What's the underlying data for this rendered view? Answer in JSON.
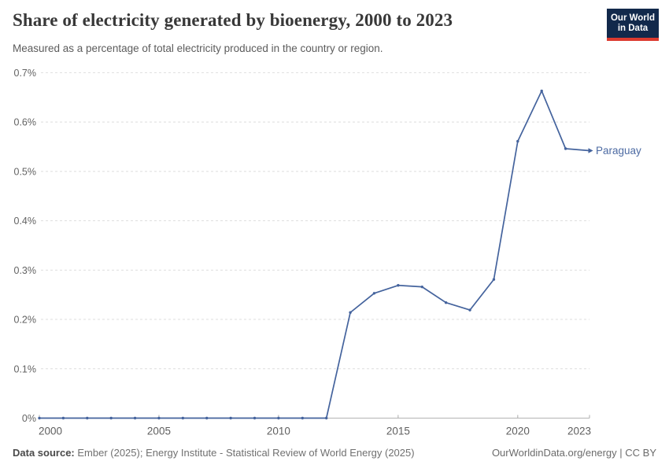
{
  "header": {
    "logo": {
      "line1": "Our World",
      "line2": "in Data",
      "bg_color": "#12294b",
      "bar_color": "#dc3a2f"
    }
  },
  "chart_data": {
    "type": "line",
    "title": "Share of electricity generated by bioenergy, 2000 to 2023",
    "subtitle": "Measured as a percentage of total electricity produced in the country or region.",
    "xlabel": "",
    "ylabel": "",
    "xlim": [
      2000,
      2023
    ],
    "ylim": [
      0,
      0.7
    ],
    "grid": "horizontal-dashed",
    "legend_position": "line-end-label",
    "x": [
      2000,
      2001,
      2002,
      2003,
      2004,
      2005,
      2006,
      2007,
      2008,
      2009,
      2010,
      2011,
      2012,
      2013,
      2014,
      2015,
      2016,
      2017,
      2018,
      2019,
      2020,
      2021,
      2022,
      2023
    ],
    "series": [
      {
        "name": "Paraguay",
        "color": "#44639d",
        "label_color": "#4d6ba3",
        "values": [
          0,
          0,
          0,
          0,
          0,
          0,
          0,
          0,
          0,
          0,
          0,
          0,
          0,
          0.214,
          0.253,
          0.269,
          0.266,
          0.234,
          0.219,
          0.281,
          0.561,
          0.663,
          0.546,
          0.542
        ]
      }
    ],
    "yticks": [
      {
        "value": 0,
        "label": "0%"
      },
      {
        "value": 0.1,
        "label": "0.1%"
      },
      {
        "value": 0.2,
        "label": "0.2%"
      },
      {
        "value": 0.3,
        "label": "0.3%"
      },
      {
        "value": 0.4,
        "label": "0.4%"
      },
      {
        "value": 0.5,
        "label": "0.5%"
      },
      {
        "value": 0.6,
        "label": "0.6%"
      },
      {
        "value": 0.7,
        "label": "0.7%"
      }
    ],
    "xticks": [
      {
        "value": 2000,
        "label": "2000"
      },
      {
        "value": 2005,
        "label": "2005"
      },
      {
        "value": 2010,
        "label": "2010"
      },
      {
        "value": 2015,
        "label": "2015"
      },
      {
        "value": 2020,
        "label": "2020"
      },
      {
        "value": 2023,
        "label": "2023"
      }
    ]
  },
  "footer": {
    "datasource_label": "Data source:",
    "datasource_text": " Ember (2025); Energy Institute - Statistical Review of World Energy (2025)",
    "credit": "OurWorldinData.org/energy | CC BY"
  }
}
